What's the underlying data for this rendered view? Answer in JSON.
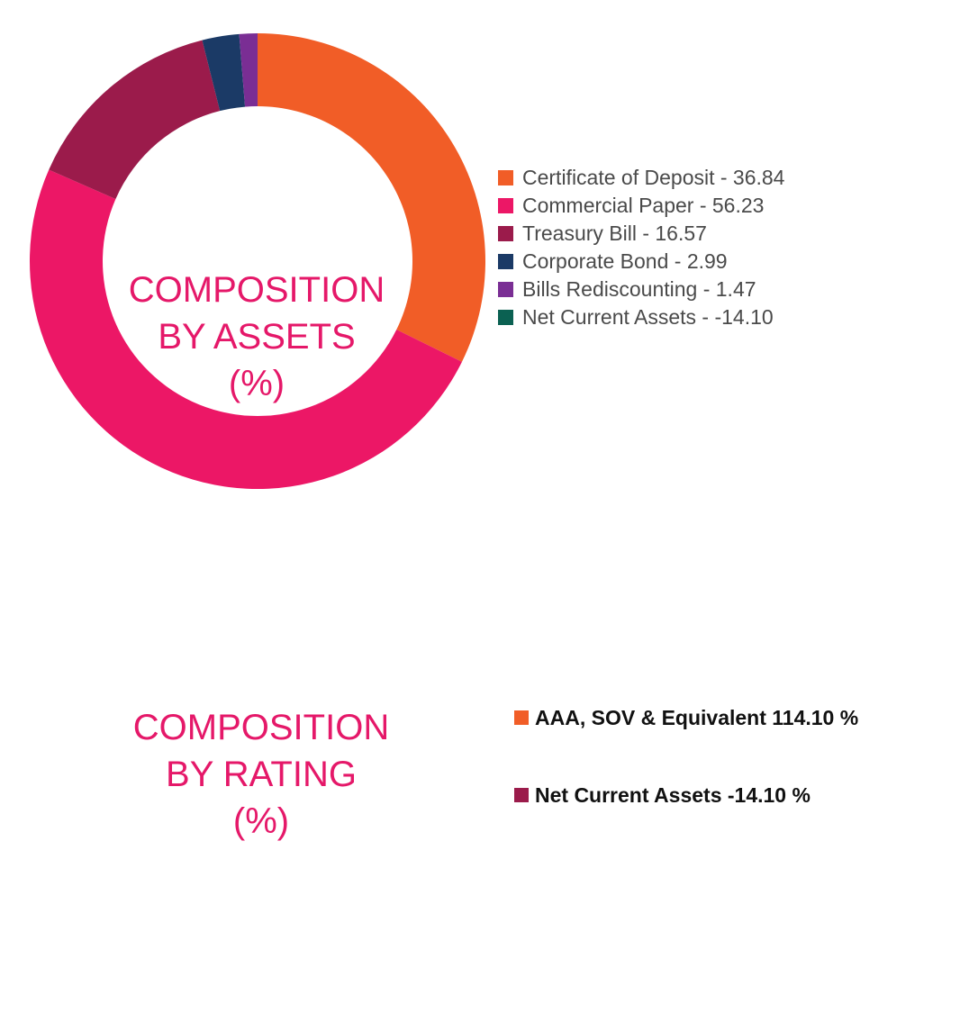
{
  "chart_data": [
    {
      "type": "pie",
      "variant": "donut",
      "center_label": [
        "COMPOSITION",
        "BY ASSETS",
        "(%)"
      ],
      "label_color": "#e51869",
      "legend_position": "right",
      "slices": [
        {
          "name": "Certificate of Deposit",
          "value": 36.84,
          "color": "#f15d27",
          "legend_text": "Certificate of Deposit - 36.84"
        },
        {
          "name": "Commercial Paper",
          "value": 56.23,
          "color": "#ec1766",
          "legend_text": "Commercial Paper - 56.23"
        },
        {
          "name": "Treasury Bill",
          "value": 16.57,
          "color": "#9b1b4b",
          "legend_text": "Treasury Bill - 16.57"
        },
        {
          "name": "Corporate Bond",
          "value": 2.99,
          "color": "#1b3a66",
          "legend_text": "Corporate Bond - 2.99"
        },
        {
          "name": "Bills Rediscounting",
          "value": 1.47,
          "color": "#7a2e94",
          "legend_text": "Bills Rediscounting - 1.47"
        },
        {
          "name": "Net Current Assets",
          "value": -14.1,
          "color": "#0b6152",
          "legend_text": "Net Current Assets - -14.10"
        }
      ]
    },
    {
      "type": "pie",
      "variant": "donut",
      "center_label": [
        "COMPOSITION",
        "BY RATING",
        "(%)"
      ],
      "label_color": "#e51869",
      "legend_position": "right",
      "slices": [
        {
          "name": "AAA, SOV & Equivalent",
          "value": 114.1,
          "color": "#f15d27",
          "legend_text": "AAA, SOV & Equivalent  114.10 %"
        },
        {
          "name": "Net Current Assets",
          "value": -14.1,
          "color": "#9b1b4b",
          "legend_text": "Net Current Assets  -14.10 %"
        }
      ]
    }
  ]
}
